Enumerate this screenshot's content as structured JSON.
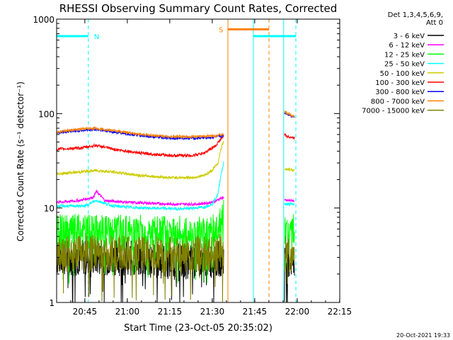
{
  "chart_data": {
    "type": "line",
    "title": "RHESSI Observing Summary Count Rates, Corrected",
    "xlabel": "Start Time (23-Oct-05 20:35:02)",
    "ylabel": "Corrected Count Rate (s⁻¹ detector⁻¹)",
    "yscale": "log",
    "ylim": [
      1,
      1000
    ],
    "xlim_minutes_after_start": [
      0,
      100
    ],
    "x_ticks": [
      {
        "label": "20:45",
        "minute": 9.97
      },
      {
        "label": "21:00",
        "minute": 24.97
      },
      {
        "label": "21:15",
        "minute": 39.97
      },
      {
        "label": "21:30",
        "minute": 54.97
      },
      {
        "label": "21:45",
        "minute": 69.97
      },
      {
        "label": "22:00",
        "minute": 84.97
      },
      {
        "label": "22:15",
        "minute": 99.97
      }
    ],
    "y_ticks": [
      {
        "label": "1",
        "value": 1
      },
      {
        "label": "10",
        "value": 10
      },
      {
        "label": "100",
        "value": 100
      },
      {
        "label": "1000",
        "value": 1000
      }
    ],
    "legend_title": [
      "Det 1,3,4,5,6,9,",
      "Att 0"
    ],
    "legend_placement": "right",
    "series": [
      {
        "name": "3 - 6 keV",
        "color": "#000000",
        "noisy": true,
        "segments": [
          {
            "x": [
              0,
              20,
              40,
              55,
              59
            ],
            "y": [
              3,
              3,
              2.7,
              2.8,
              3
            ]
          },
          {
            "x": [
              80.5,
              84
            ],
            "y": [
              2.8,
              2.8
            ]
          }
        ]
      },
      {
        "name": "6 - 12 keV",
        "color": "#ff00ff",
        "segments": [
          {
            "x": [
              0,
              8,
              13,
              14,
              17,
              25,
              40,
              50,
              55,
              59
            ],
            "y": [
              11.5,
              12,
              13,
              15,
              12,
              11.5,
              11,
              11,
              11.5,
              13
            ]
          },
          {
            "x": [
              80.5,
              84
            ],
            "y": [
              12,
              12
            ]
          }
        ]
      },
      {
        "name": "12 - 25 keV",
        "color": "#00ff00",
        "noisy": true,
        "segments": [
          {
            "x": [
              0,
              20,
              40,
              55,
              58,
              59
            ],
            "y": [
              5.5,
              5.5,
              5.3,
              5.5,
              6.5,
              8
            ]
          },
          {
            "x": [
              80.5,
              84
            ],
            "y": [
              5.5,
              5.5
            ]
          }
        ]
      },
      {
        "name": "25 - 50 keV",
        "color": "#00ffff",
        "segments": [
          {
            "x": [
              0,
              10,
              14,
              20,
              30,
              45,
              52,
              55,
              57,
              59
            ],
            "y": [
              10.5,
              10.5,
              12,
              10.5,
              10,
              9.8,
              10.2,
              11,
              14,
              30
            ]
          },
          {
            "x": [
              80.5,
              84
            ],
            "y": [
              11,
              11
            ]
          }
        ]
      },
      {
        "name": "50 - 100 keV",
        "color": "#cccc00",
        "segments": [
          {
            "x": [
              0,
              8,
              14,
              20,
              30,
              40,
              48,
              52,
              55,
              57,
              59
            ],
            "y": [
              23,
              24,
              25,
              24,
              22,
              21,
              21,
              22,
              25,
              30,
              52
            ]
          },
          {
            "x": [
              80.5,
              84
            ],
            "y": [
              26,
              25
            ]
          }
        ]
      },
      {
        "name": "100 - 300 keV",
        "color": "#ff0000",
        "segments": [
          {
            "x": [
              0,
              8,
              14,
              20,
              30,
              40,
              48,
              52,
              56,
              59
            ],
            "y": [
              42,
              43,
              46,
              42,
              38,
              36,
              36,
              38,
              45,
              58
            ]
          },
          {
            "x": [
              80.5,
              81,
              84
            ],
            "y": [
              60,
              58,
              55
            ]
          }
        ]
      },
      {
        "name": "300 - 800 keV",
        "color": "#0000ff",
        "segments": [
          {
            "x": [
              0,
              8,
              14,
              20,
              30,
              40,
              50,
              55,
              59
            ],
            "y": [
              63,
              66,
              68,
              64,
              58,
              55,
              55,
              56,
              58
            ]
          },
          {
            "x": [
              80.5,
              84
            ],
            "y": [
              102,
              92
            ]
          }
        ]
      },
      {
        "name": "800 - 7000 keV",
        "color": "#ff8000",
        "segments": [
          {
            "x": [
              0,
              8,
              14,
              20,
              30,
              40,
              50,
              55,
              59
            ],
            "y": [
              64,
              68,
              70,
              66,
              60,
              57,
              57,
              58,
              60
            ]
          },
          {
            "x": [
              80.5,
              84
            ],
            "y": [
              104,
              93
            ]
          }
        ]
      },
      {
        "name": "7000 - 15000 keV",
        "color": "#808000",
        "noisy": true,
        "segments": [
          {
            "x": [
              0,
              20,
              40,
              55,
              59
            ],
            "y": [
              3.3,
              3.3,
              3.2,
              3.3,
              3.4
            ]
          },
          {
            "x": [
              80.5,
              84
            ],
            "y": [
              3.3,
              3.3
            ]
          }
        ]
      }
    ],
    "events": {
      "night_bars": [
        {
          "x": [
            0,
            11.2
          ],
          "y": 660
        },
        {
          "x": [
            69.5,
            84.5
          ],
          "y": 660
        }
      ],
      "saa_bar": {
        "x": [
          60.5,
          75
        ],
        "y": 780
      },
      "saa_label": "S",
      "night_label": "N",
      "vlines": [
        {
          "x": 11.2,
          "color": "#00ffff",
          "dashed": true
        },
        {
          "x": 60.5,
          "color": "#ff8000",
          "dashed": false
        },
        {
          "x": 69.5,
          "color": "#00ffff",
          "dashed": false
        },
        {
          "x": 75,
          "color": "#ff8000",
          "dashed": true
        },
        {
          "x": 80.2,
          "color": "#00ffff",
          "dashed": false
        },
        {
          "x": 84.5,
          "color": "#00ffff",
          "dashed": true
        }
      ]
    }
  },
  "footer": {
    "timestamp": "20-Oct-2021 19:33"
  }
}
